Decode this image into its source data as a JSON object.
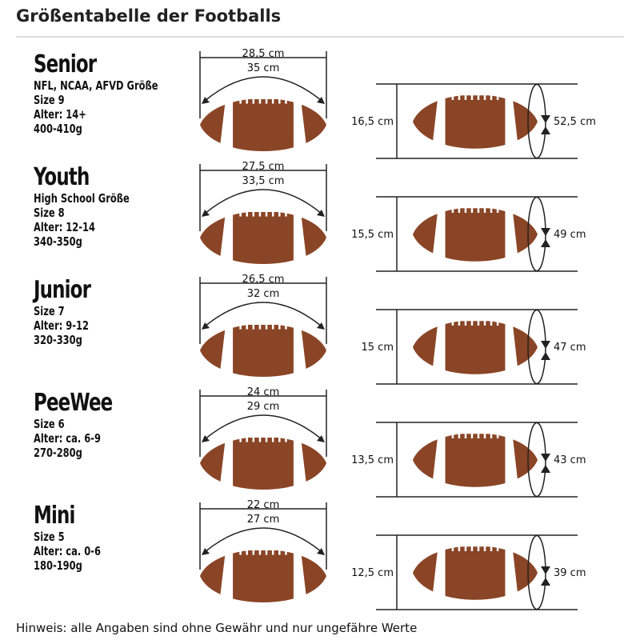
{
  "title": "Größentabelle der Footballs",
  "note": "Hinweis: alle Angaben sind ohne Gewähr und nur ungefähre Werte",
  "colors": {
    "ball": "#8a4526",
    "lace": "#ffffff",
    "line": "#222222"
  },
  "sizes": [
    {
      "name": "Senior",
      "lines": [
        "NFL, NCAA, AFVD Größe",
        "Size 9",
        "Alter: 14+",
        "400-410g"
      ],
      "length": "28,5 cm",
      "arc": "35 cm",
      "height": "16,5 cm",
      "circumference": "52,5 cm"
    },
    {
      "name": "Youth",
      "lines": [
        "High School Größe",
        "Size 8",
        "Alter: 12-14",
        "340-350g"
      ],
      "length": "27,5 cm",
      "arc": "33,5 cm",
      "height": "15,5 cm",
      "circumference": "49 cm"
    },
    {
      "name": "Junior",
      "lines": [
        "Size 7",
        "Alter: 9-12",
        "320-330g"
      ],
      "length": "26,5 cm",
      "arc": "32 cm",
      "height": "15 cm",
      "circumference": "47 cm"
    },
    {
      "name": "PeeWee",
      "lines": [
        "Size 6",
        "Alter: ca. 6-9",
        "270-280g"
      ],
      "length": "24 cm",
      "arc": "29 cm",
      "height": "13,5 cm",
      "circumference": "43 cm"
    },
    {
      "name": "Mini",
      "lines": [
        "Size 5",
        "Alter: ca. 0-6",
        "180-190g"
      ],
      "length": "22 cm",
      "arc": "27 cm",
      "height": "12,5 cm",
      "circumference": "39 cm"
    }
  ]
}
